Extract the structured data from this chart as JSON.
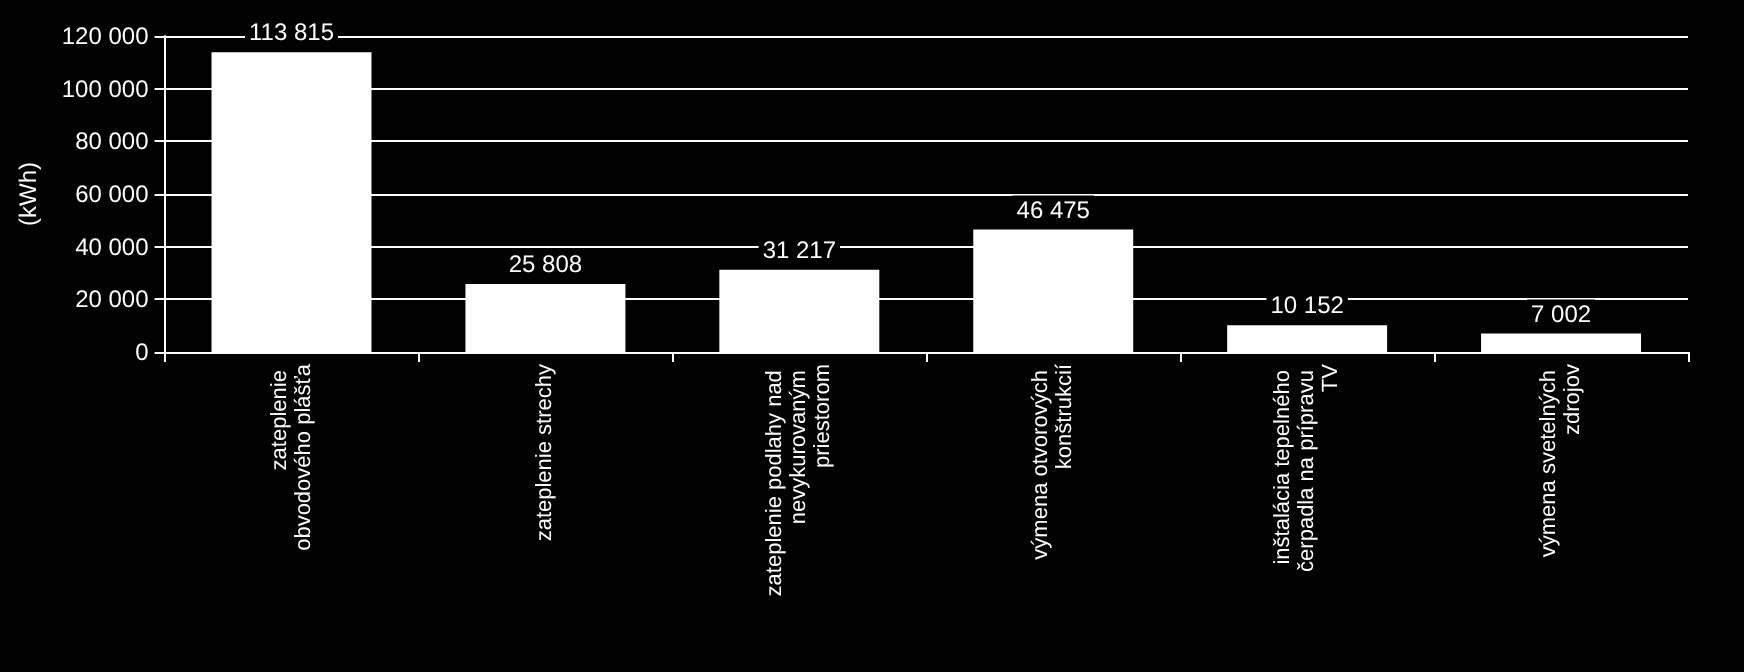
{
  "chart_data": {
    "type": "bar",
    "ylabel": "(kWh)",
    "categories": [
      "zateplenie obvodového plášťa",
      "zateplenie strechy",
      "zateplenie podlahy nad nevykurovaným priestorom",
      "výmena otvorových konštrukcií",
      "inštalácia tepelného čerpadla na prípravu TV",
      "výmena svetelných zdrojov"
    ],
    "values": [
      113815,
      25808,
      31217,
      46475,
      10152,
      7002
    ],
    "color": "#ffffff",
    "ylim": [
      0,
      120000
    ],
    "yticks": [
      0,
      20000,
      40000,
      60000,
      80000,
      100000,
      120000
    ],
    "grid": "y",
    "data_labels": true
  }
}
